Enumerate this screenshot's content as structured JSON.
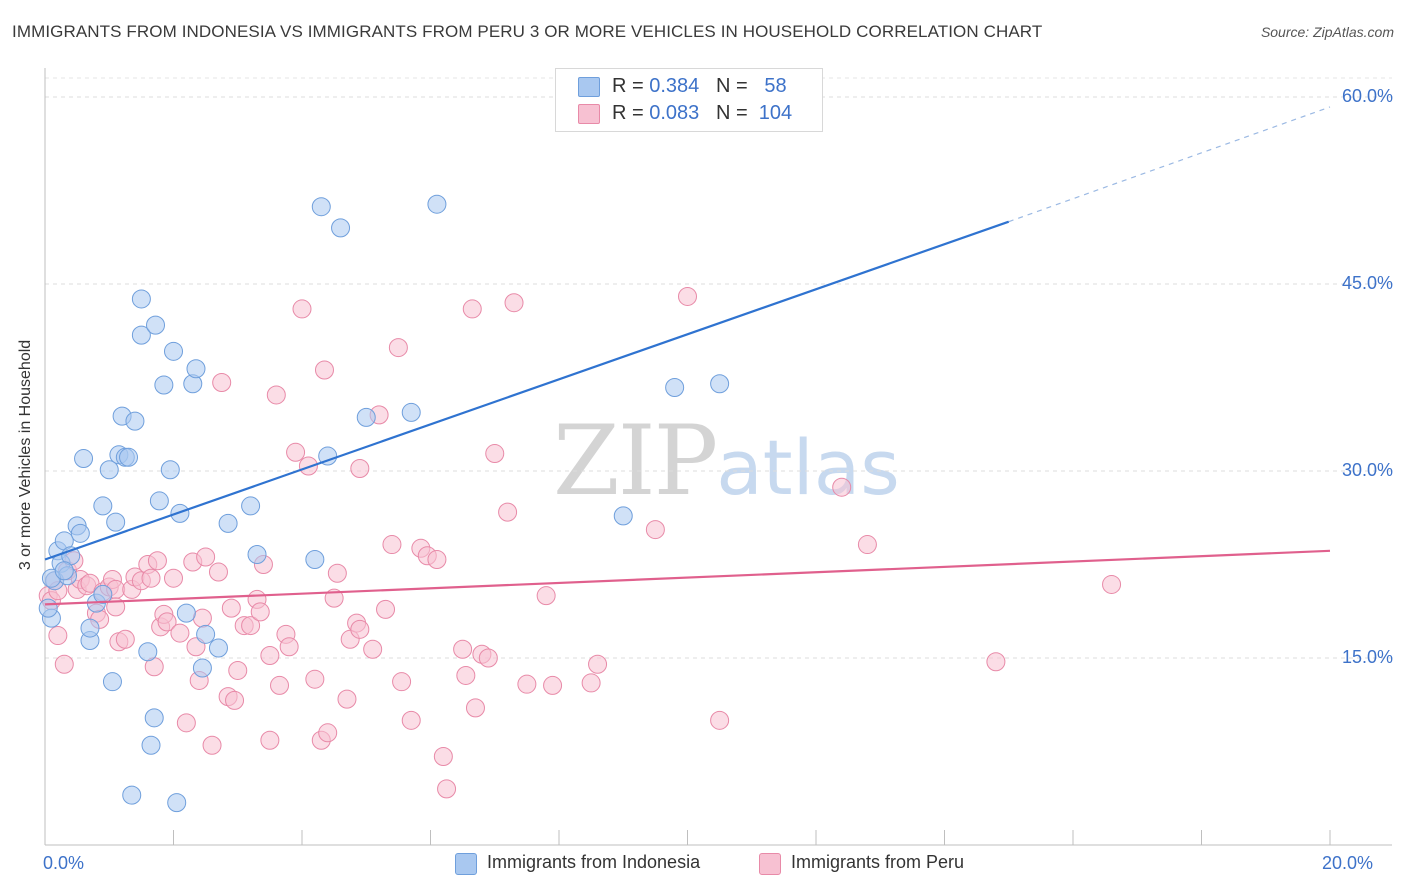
{
  "header": {
    "title": "IMMIGRANTS FROM INDONESIA VS IMMIGRANTS FROM PERU 3 OR MORE VEHICLES IN HOUSEHOLD CORRELATION CHART",
    "source": "Source: ZipAtlas.com"
  },
  "watermark": {
    "zip": "ZIP",
    "atlas": "atlas"
  },
  "legend_stats": [
    {
      "r_label": "R =",
      "r_value": "0.384",
      "n_label": "N =",
      "n_value": "58",
      "color": "#a9c8f0",
      "border": "#6f9fdc"
    },
    {
      "r_label": "R =",
      "r_value": "0.083",
      "n_label": "N =",
      "n_value": "104",
      "color": "#f7c1d2",
      "border": "#e88aa8"
    }
  ],
  "legend_bottom": [
    {
      "label": "Immigrants from Indonesia",
      "color": "#a9c8f0",
      "border": "#6f9fdc"
    },
    {
      "label": "Immigrants from Peru",
      "color": "#f7c1d2",
      "border": "#e88aa8"
    }
  ],
  "chart_data": {
    "type": "scatter",
    "title": "IMMIGRANTS FROM INDONESIA VS IMMIGRANTS FROM PERU 3 OR MORE VEHICLES IN HOUSEHOLD CORRELATION CHART",
    "xlabel": "",
    "ylabel": "3 or more Vehicles in Household",
    "xlim": [
      0,
      20
    ],
    "ylim": [
      0,
      60
    ],
    "x_tick_labels": [
      "0.0%",
      "20.0%"
    ],
    "y_ticks": [
      15,
      30,
      45,
      60
    ],
    "y_tick_labels": [
      "15.0%",
      "30.0%",
      "45.0%",
      "60.0%"
    ],
    "grid": true,
    "legend_placement": "top-center",
    "series": [
      {
        "name": "Immigrants from Indonesia",
        "color": "#a9c8f0",
        "stroke": "#6f9fdc",
        "trend": {
          "x0": 0,
          "y0": 22.9,
          "x1": 15,
          "y1": 50.0,
          "dashed_to_x": 20,
          "dashed_to_y": 59.2,
          "color": "#2f73d0"
        },
        "points": [
          [
            0.1,
            18.2
          ],
          [
            0.15,
            21.2
          ],
          [
            0.2,
            23.6
          ],
          [
            0.25,
            22.6
          ],
          [
            0.3,
            24.4
          ],
          [
            0.35,
            21.6
          ],
          [
            0.4,
            23.2
          ],
          [
            0.5,
            25.6
          ],
          [
            0.55,
            25.0
          ],
          [
            0.6,
            31.0
          ],
          [
            0.7,
            16.4
          ],
          [
            0.7,
            17.4
          ],
          [
            0.8,
            19.4
          ],
          [
            0.9,
            27.2
          ],
          [
            1.0,
            30.1
          ],
          [
            1.05,
            13.1
          ],
          [
            1.1,
            25.9
          ],
          [
            1.15,
            31.3
          ],
          [
            1.2,
            34.4
          ],
          [
            1.25,
            31.1
          ],
          [
            1.3,
            31.1
          ],
          [
            1.35,
            4.0
          ],
          [
            1.4,
            34.0
          ],
          [
            1.5,
            43.8
          ],
          [
            1.5,
            40.9
          ],
          [
            1.6,
            15.5
          ],
          [
            1.65,
            8.0
          ],
          [
            1.7,
            10.2
          ],
          [
            1.72,
            41.7
          ],
          [
            1.78,
            27.6
          ],
          [
            1.85,
            36.9
          ],
          [
            1.95,
            30.1
          ],
          [
            2.0,
            39.6
          ],
          [
            2.05,
            3.4
          ],
          [
            2.1,
            26.6
          ],
          [
            2.2,
            18.6
          ],
          [
            2.3,
            37.0
          ],
          [
            2.35,
            38.2
          ],
          [
            2.45,
            14.2
          ],
          [
            2.5,
            16.9
          ],
          [
            2.7,
            15.8
          ],
          [
            2.85,
            25.8
          ],
          [
            3.2,
            27.2
          ],
          [
            3.3,
            23.3
          ],
          [
            4.2,
            22.9
          ],
          [
            4.4,
            31.2
          ],
          [
            4.3,
            51.2
          ],
          [
            4.6,
            49.5
          ],
          [
            5.0,
            34.3
          ],
          [
            5.7,
            34.7
          ],
          [
            6.1,
            51.4
          ],
          [
            9.0,
            26.4
          ],
          [
            9.8,
            36.7
          ],
          [
            10.5,
            37.0
          ],
          [
            0.05,
            19.0
          ],
          [
            0.1,
            21.4
          ],
          [
            0.3,
            22.0
          ],
          [
            0.9,
            20.1
          ]
        ]
      },
      {
        "name": "Immigrants from Peru",
        "color": "#f7c1d2",
        "stroke": "#e88aa8",
        "trend": {
          "x0": 0,
          "y0": 19.3,
          "x1": 20,
          "y1": 23.6,
          "color": "#e0608d"
        },
        "points": [
          [
            0.05,
            20.0
          ],
          [
            0.1,
            19.6
          ],
          [
            0.15,
            21.2
          ],
          [
            0.2,
            20.4
          ],
          [
            0.3,
            14.5
          ],
          [
            0.35,
            22.0
          ],
          [
            0.45,
            22.8
          ],
          [
            0.5,
            20.5
          ],
          [
            0.55,
            21.3
          ],
          [
            0.65,
            20.8
          ],
          [
            0.7,
            21.0
          ],
          [
            0.8,
            18.6
          ],
          [
            0.85,
            18.1
          ],
          [
            0.9,
            20.3
          ],
          [
            1.0,
            20.7
          ],
          [
            1.05,
            21.3
          ],
          [
            1.1,
            20.5
          ],
          [
            1.15,
            16.3
          ],
          [
            1.25,
            16.5
          ],
          [
            1.35,
            20.5
          ],
          [
            1.4,
            21.5
          ],
          [
            1.5,
            21.2
          ],
          [
            1.6,
            22.5
          ],
          [
            1.65,
            21.4
          ],
          [
            1.7,
            14.3
          ],
          [
            1.8,
            17.5
          ],
          [
            1.85,
            18.5
          ],
          [
            1.9,
            17.9
          ],
          [
            2.0,
            21.4
          ],
          [
            2.1,
            17.0
          ],
          [
            2.2,
            9.8
          ],
          [
            2.3,
            22.7
          ],
          [
            2.35,
            15.9
          ],
          [
            2.45,
            18.2
          ],
          [
            2.5,
            23.1
          ],
          [
            2.6,
            8.0
          ],
          [
            2.7,
            21.9
          ],
          [
            2.75,
            37.1
          ],
          [
            2.85,
            11.9
          ],
          [
            2.9,
            19.0
          ],
          [
            2.95,
            11.6
          ],
          [
            3.0,
            14.0
          ],
          [
            3.1,
            17.6
          ],
          [
            3.2,
            17.6
          ],
          [
            3.3,
            19.7
          ],
          [
            3.35,
            18.7
          ],
          [
            3.4,
            22.5
          ],
          [
            3.5,
            8.4
          ],
          [
            3.6,
            36.1
          ],
          [
            3.65,
            12.8
          ],
          [
            3.75,
            16.9
          ],
          [
            3.8,
            15.9
          ],
          [
            3.9,
            31.5
          ],
          [
            4.0,
            43.0
          ],
          [
            4.1,
            30.4
          ],
          [
            4.2,
            13.3
          ],
          [
            4.3,
            8.4
          ],
          [
            4.35,
            38.1
          ],
          [
            4.4,
            9.0
          ],
          [
            4.5,
            19.8
          ],
          [
            4.55,
            21.8
          ],
          [
            4.7,
            11.7
          ],
          [
            4.75,
            16.5
          ],
          [
            4.85,
            17.8
          ],
          [
            4.9,
            30.2
          ],
          [
            5.1,
            15.7
          ],
          [
            5.2,
            34.5
          ],
          [
            5.4,
            24.1
          ],
          [
            5.5,
            39.9
          ],
          [
            5.55,
            13.1
          ],
          [
            5.7,
            10.0
          ],
          [
            5.85,
            23.8
          ],
          [
            5.95,
            23.2
          ],
          [
            6.1,
            22.9
          ],
          [
            6.2,
            7.1
          ],
          [
            6.25,
            4.5
          ],
          [
            6.5,
            15.7
          ],
          [
            6.55,
            13.6
          ],
          [
            6.65,
            43.0
          ],
          [
            6.7,
            11.0
          ],
          [
            6.8,
            15.3
          ],
          [
            7.0,
            31.4
          ],
          [
            7.2,
            26.7
          ],
          [
            7.3,
            43.5
          ],
          [
            7.5,
            12.9
          ],
          [
            7.8,
            20.0
          ],
          [
            7.9,
            12.8
          ],
          [
            8.5,
            13.0
          ],
          [
            8.6,
            14.5
          ],
          [
            9.5,
            25.3
          ],
          [
            10.0,
            44.0
          ],
          [
            10.5,
            10.0
          ],
          [
            12.4,
            28.7
          ],
          [
            12.8,
            24.1
          ],
          [
            14.8,
            14.7
          ],
          [
            16.6,
            20.9
          ],
          [
            0.2,
            16.8
          ],
          [
            1.1,
            19.1
          ],
          [
            2.4,
            13.2
          ],
          [
            3.5,
            15.2
          ],
          [
            4.9,
            17.3
          ],
          [
            5.3,
            18.9
          ],
          [
            6.9,
            15.0
          ],
          [
            1.75,
            22.8
          ]
        ]
      }
    ]
  }
}
